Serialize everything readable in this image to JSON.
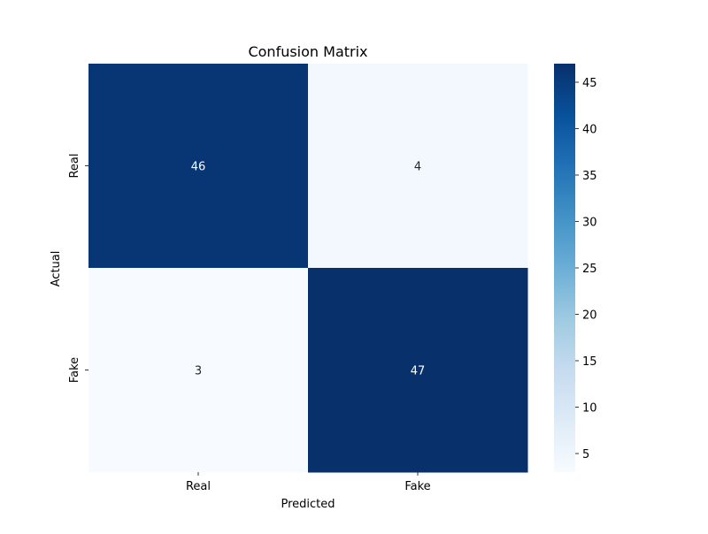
{
  "chart_data": {
    "type": "heatmap",
    "title": "Confusion Matrix",
    "xlabel": "Predicted",
    "ylabel": "Actual",
    "x_categories": [
      "Real",
      "Fake"
    ],
    "y_categories": [
      "Real",
      "Fake"
    ],
    "matrix": [
      [
        46,
        4
      ],
      [
        3,
        47
      ]
    ],
    "colormap": "Blues",
    "vmin": 3,
    "vmax": 47,
    "colorbar_ticks": [
      5,
      10,
      15,
      20,
      25,
      30,
      35,
      40,
      45
    ],
    "colorbar_position": "right",
    "annotation_colors": {
      "on_dark": "#ffffff",
      "on_light": "#262626"
    }
  }
}
